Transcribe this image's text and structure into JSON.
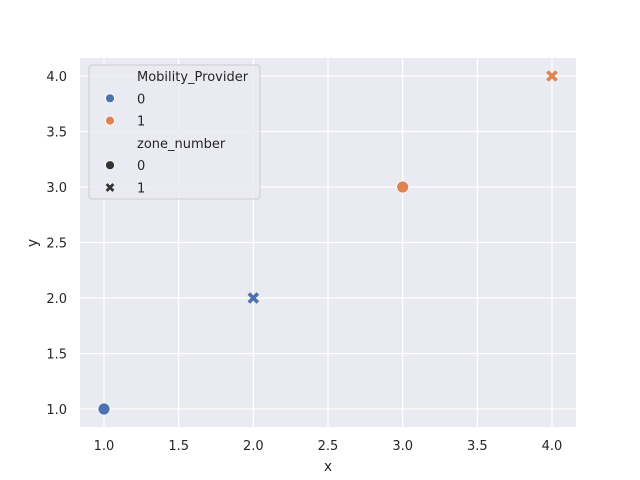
{
  "chart_data": {
    "type": "scatter",
    "title": "",
    "xlabel": "x",
    "ylabel": "y",
    "xlim": [
      0.85,
      4.15
    ],
    "ylim": [
      0.84,
      4.16
    ],
    "xticks": [
      1.0,
      1.5,
      2.0,
      2.5,
      3.0,
      3.5,
      4.0
    ],
    "xtick_labels": [
      "1.0",
      "1.5",
      "2.0",
      "2.5",
      "3.0",
      "3.5",
      "4.0"
    ],
    "yticks": [
      1.0,
      1.5,
      2.0,
      2.5,
      3.0,
      3.5,
      4.0
    ],
    "ytick_labels": [
      "1.0",
      "1.5",
      "2.0",
      "2.5",
      "3.0",
      "3.5",
      "4.0"
    ],
    "grid": true,
    "style": "seaborn-darkgrid",
    "points": [
      {
        "x": 1,
        "y": 1,
        "Mobility_Provider": 0,
        "zone_number": 0
      },
      {
        "x": 2,
        "y": 2,
        "Mobility_Provider": 0,
        "zone_number": 1
      },
      {
        "x": 3,
        "y": 3,
        "Mobility_Provider": 1,
        "zone_number": 0
      },
      {
        "x": 4,
        "y": 4,
        "Mobility_Provider": 1,
        "zone_number": 1
      }
    ],
    "hue": {
      "variable": "Mobility_Provider",
      "levels": [
        "0",
        "1"
      ],
      "colors": [
        "#4c72b0",
        "#dd8452"
      ]
    },
    "style_var": {
      "variable": "zone_number",
      "levels": [
        "0",
        "1"
      ],
      "markers": [
        "circle",
        "x"
      ]
    },
    "legend": {
      "position": "upper left",
      "entries": [
        {
          "type": "title",
          "label": "Mobility_Provider"
        },
        {
          "type": "item",
          "label": "0",
          "marker": "circle",
          "color": "#4c72b0"
        },
        {
          "type": "item",
          "label": "1",
          "marker": "circle",
          "color": "#dd8452"
        },
        {
          "type": "title",
          "label": "zone_number"
        },
        {
          "type": "item",
          "label": "0",
          "marker": "circle",
          "color": "#333333"
        },
        {
          "type": "item",
          "label": "1",
          "marker": "x",
          "color": "#333333"
        }
      ]
    }
  },
  "colors": {
    "axes_bg": "#eaeaf2",
    "grid": "#ffffff",
    "text": "#262626"
  }
}
